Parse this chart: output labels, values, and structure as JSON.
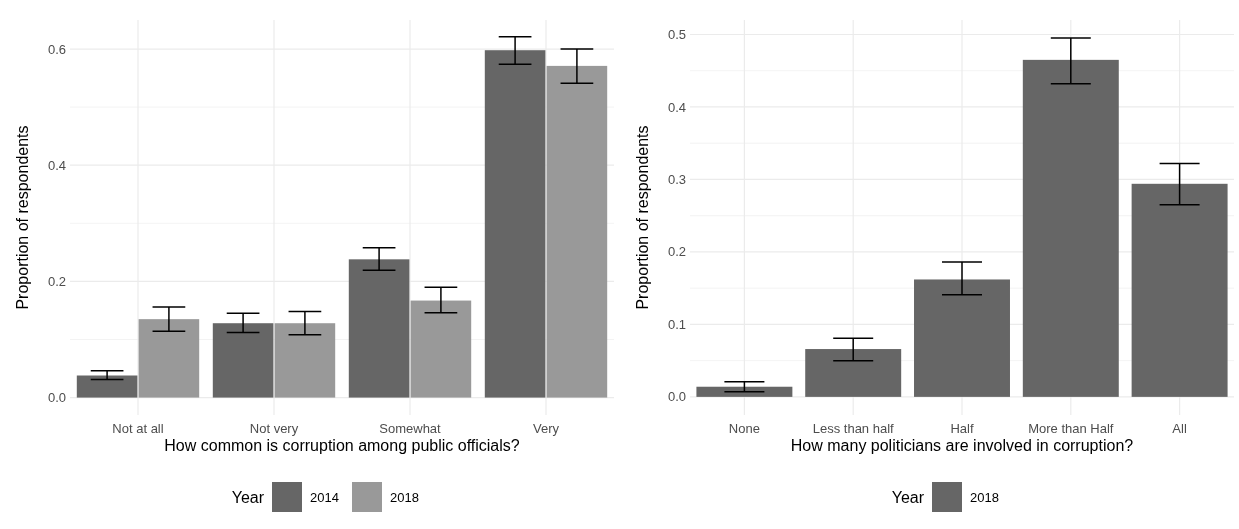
{
  "chart_data": [
    {
      "type": "bar",
      "xlabel": "How common is corruption among public officials?",
      "ylabel": "Proportion of respondents",
      "legend_title": "Year",
      "categories": [
        "Not at all",
        "Not very",
        "Somewhat",
        "Very"
      ],
      "ylim": [
        -0.03,
        0.65
      ],
      "yticks": [
        {
          "value": 0,
          "label": "0.0"
        },
        0.2,
        0.4,
        0.6
      ],
      "grid": true,
      "legend": "bottom",
      "series": [
        {
          "name": "2014",
          "color": "#666666",
          "values": [
            0.038,
            0.128,
            0.238,
            0.598
          ],
          "errors": [
            [
              0.031,
              0.046
            ],
            [
              0.112,
              0.145
            ],
            [
              0.219,
              0.258
            ],
            [
              0.574,
              0.621
            ]
          ]
        },
        {
          "name": "2018",
          "color": "#999999",
          "values": [
            0.135,
            0.128,
            0.167,
            0.571
          ],
          "errors": [
            [
              0.114,
              0.156
            ],
            [
              0.108,
              0.148
            ],
            [
              0.146,
              0.19
            ],
            [
              0.541,
              0.6
            ]
          ]
        }
      ]
    },
    {
      "type": "bar",
      "xlabel": "How many politicians are involved in corruption?",
      "ylabel": "Proportion of respondents",
      "legend_title": "Year",
      "categories": [
        "None",
        "Less than half",
        "Half",
        "More than Half",
        "All"
      ],
      "ylim": [
        -0.025,
        0.52
      ],
      "yticks": [
        {
          "value": 0,
          "label": "0.0"
        },
        0.1,
        0.2,
        0.3,
        0.4,
        0.5
      ],
      "grid": true,
      "legend": "bottom",
      "series": [
        {
          "name": "2018",
          "color": "#666666",
          "values": [
            0.014,
            0.066,
            0.162,
            0.465,
            0.294
          ],
          "errors": [
            [
              0.007,
              0.021
            ],
            [
              0.05,
              0.081
            ],
            [
              0.141,
              0.186
            ],
            [
              0.432,
              0.495
            ],
            [
              0.265,
              0.322
            ]
          ]
        }
      ]
    }
  ]
}
